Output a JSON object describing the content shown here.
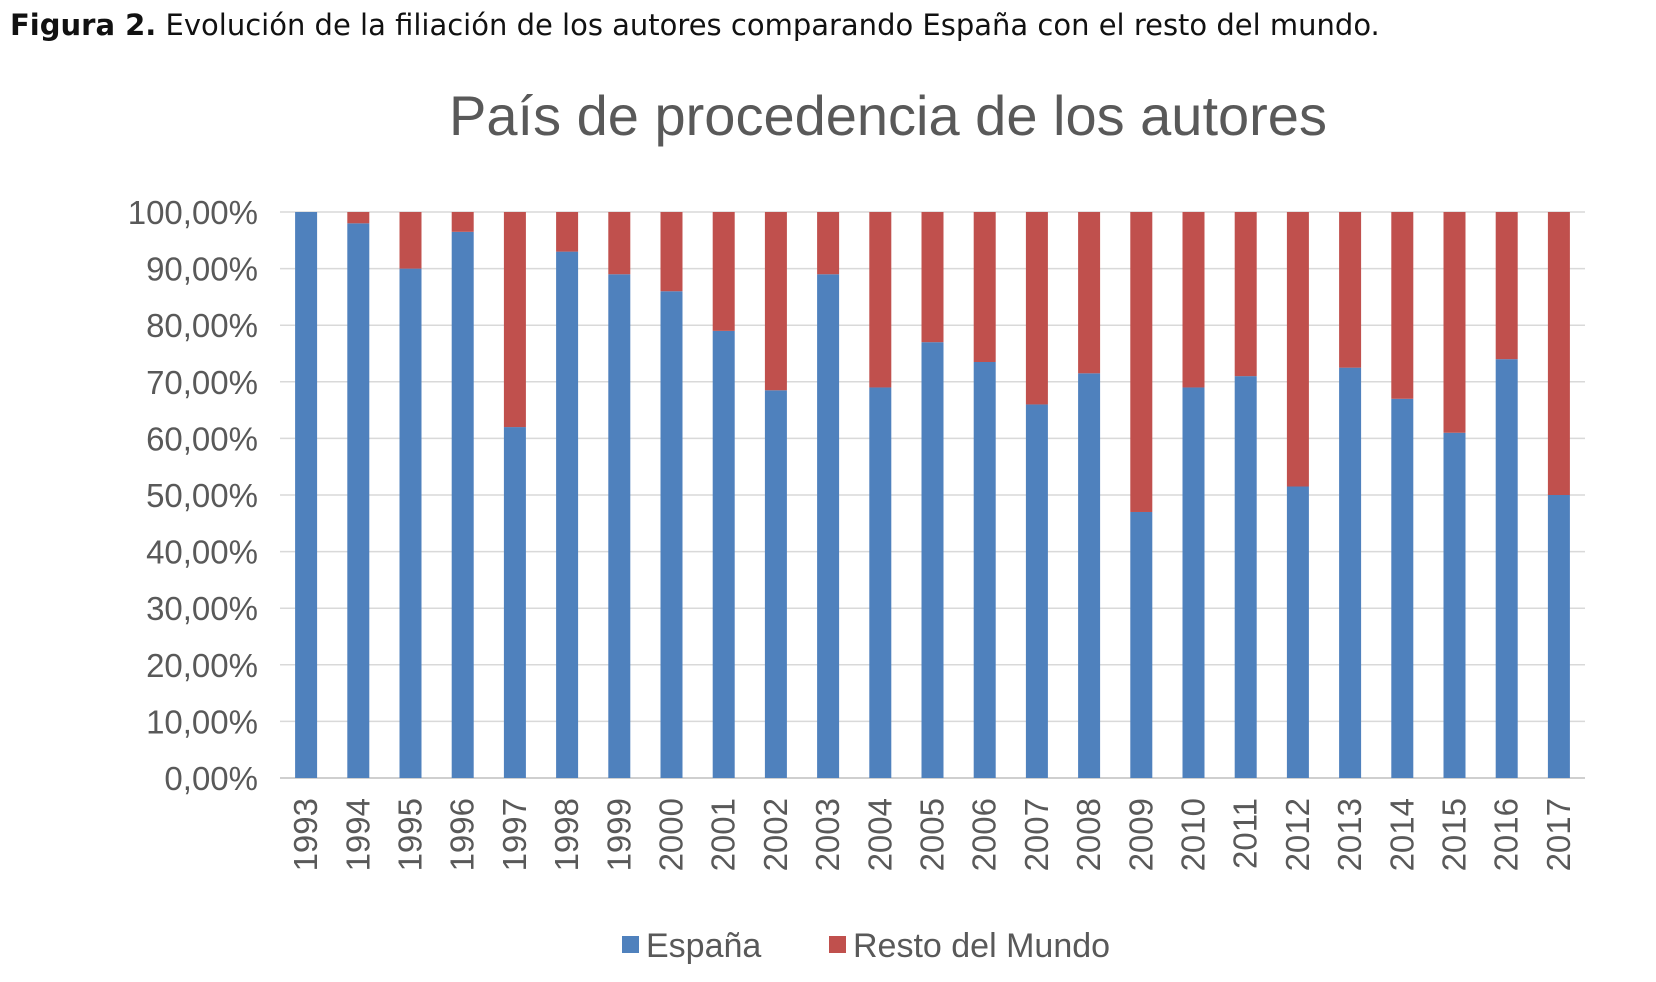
{
  "caption": {
    "label": "Figura 2.",
    "text": " Evolución de la filiación de los autores comparando España con el resto del mundo."
  },
  "chart_data": {
    "type": "bar",
    "stacked": "percent",
    "title": "País de procedencia de los autores",
    "xlabel": "",
    "ylabel": "",
    "ylim": [
      0,
      100
    ],
    "yticks": [
      "0,00%",
      "10,00%",
      "20,00%",
      "30,00%",
      "40,00%",
      "50,00%",
      "60,00%",
      "70,00%",
      "80,00%",
      "90,00%",
      "100,00%"
    ],
    "categories": [
      "1993",
      "1994",
      "1995",
      "1996",
      "1997",
      "1998",
      "1999",
      "2000",
      "2001",
      "2002",
      "2003",
      "2004",
      "2005",
      "2006",
      "2007",
      "2008",
      "2009",
      "2010",
      "2011",
      "2012",
      "2013",
      "2014",
      "2015",
      "2016",
      "2017"
    ],
    "series": [
      {
        "name": "España",
        "color": "#4f81bd",
        "values": [
          100,
          98,
          90,
          96.5,
          62,
          93,
          89,
          86,
          79,
          68.5,
          89,
          69,
          77,
          73.5,
          66,
          71.5,
          47,
          69,
          71,
          51.5,
          72.5,
          67,
          61,
          74,
          50
        ]
      },
      {
        "name": "Resto del Mundo",
        "color": "#c0504d",
        "values": [
          0,
          2,
          10,
          3.5,
          38,
          7,
          11,
          14,
          21,
          31.5,
          11,
          31,
          23,
          26.5,
          34,
          28.5,
          53,
          31,
          29,
          48.5,
          27.5,
          33,
          39,
          26,
          50
        ]
      }
    ],
    "grid": true,
    "legend": "bottom"
  }
}
